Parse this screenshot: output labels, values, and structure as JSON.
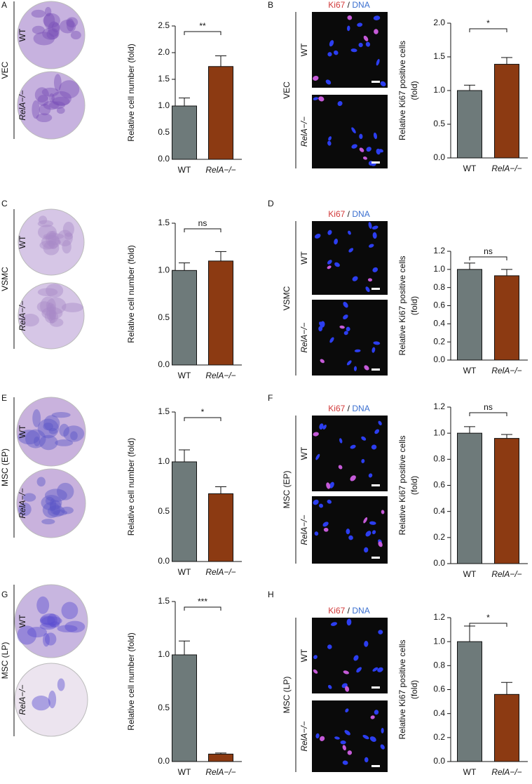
{
  "panels": [
    {
      "letter": "A",
      "cell_type": "VEC",
      "rows": [
        "WT",
        "RelA−/−"
      ]
    },
    {
      "letter": "B",
      "cell_type": "VEC",
      "rows": [
        "WT",
        "RelA−/−"
      ],
      "stain": {
        "marker": "Ki67",
        "separator": "/",
        "counter": "DNA"
      }
    },
    {
      "letter": "C",
      "cell_type": "VSMC",
      "rows": [
        "WT",
        "RelA−/−"
      ]
    },
    {
      "letter": "D",
      "cell_type": "VSMC",
      "rows": [
        "WT",
        "RelA−/−"
      ],
      "stain": {
        "marker": "Ki67",
        "separator": "/",
        "counter": "DNA"
      }
    },
    {
      "letter": "E",
      "cell_type": "MSC (EP)",
      "rows": [
        "WT",
        "RelA−/−"
      ]
    },
    {
      "letter": "F",
      "cell_type": "MSC (EP)",
      "rows": [
        "WT",
        "RelA−/−"
      ],
      "stain": {
        "marker": "Ki67",
        "separator": "/",
        "counter": "DNA"
      }
    },
    {
      "letter": "G",
      "cell_type": "MSC (LP)",
      "rows": [
        "WT",
        "RelA−/−"
      ]
    },
    {
      "letter": "H",
      "cell_type": "MSC (LP)",
      "rows": [
        "WT",
        "RelA−/−"
      ],
      "stain": {
        "marker": "Ki67",
        "separator": "/",
        "counter": "DNA"
      }
    }
  ],
  "chart_data": [
    {
      "type": "bar",
      "ylabel": [
        "Relative cell number (fold)"
      ],
      "categories": [
        "WT",
        "RelA−/−"
      ],
      "values": [
        1.0,
        1.74
      ],
      "errors": [
        0.15,
        0.2
      ],
      "colors": [
        "#6e7a7a",
        "#8c3a12"
      ],
      "significance": "**",
      "ylim": [
        0,
        2.5
      ],
      "yticks": [
        {
          "value": 0,
          "label": "0.0"
        },
        0.5,
        {
          "value": 1,
          "label": "1.0"
        },
        1.5,
        {
          "value": 2,
          "label": "2.0"
        },
        2.5
      ]
    },
    {
      "type": "bar",
      "ylabel": [
        "Relative Ki67 positive cells",
        "(fold)"
      ],
      "categories": [
        "WT",
        "RelA−/−"
      ],
      "values": [
        1.0,
        1.39
      ],
      "errors": [
        0.08,
        0.1
      ],
      "colors": [
        "#6e7a7a",
        "#8c3a12"
      ],
      "significance": "*",
      "ylim": [
        0,
        2
      ],
      "yticks": [
        {
          "value": 0,
          "label": "0.0"
        },
        0.5,
        {
          "value": 1,
          "label": "1.0"
        },
        1.5,
        {
          "value": 2,
          "label": "2.0"
        }
      ]
    },
    {
      "type": "bar",
      "ylabel": [
        "Relative cell number (fold)"
      ],
      "categories": [
        "WT",
        "RelA−/−"
      ],
      "values": [
        1.0,
        1.1
      ],
      "errors": [
        0.08,
        0.1
      ],
      "colors": [
        "#6e7a7a",
        "#8c3a12"
      ],
      "significance": "ns",
      "ylim": [
        0,
        1.5
      ],
      "yticks": [
        {
          "value": 0,
          "label": "0.0"
        },
        0.5,
        {
          "value": 1,
          "label": "1.0"
        },
        1.5
      ]
    },
    {
      "type": "bar",
      "ylabel": [
        "Relative Ki67 positive cells",
        "(fold)"
      ],
      "categories": [
        "WT",
        "RelA−/−"
      ],
      "values": [
        1.0,
        0.93
      ],
      "errors": [
        0.07,
        0.07
      ],
      "colors": [
        "#6e7a7a",
        "#8c3a12"
      ],
      "significance": "ns",
      "ylim": [
        0,
        1.2
      ],
      "yticks": [
        {
          "value": 0,
          "label": "0.0"
        },
        0.2,
        0.4,
        0.6,
        0.8,
        {
          "value": 1,
          "label": "1.0"
        },
        1.2
      ]
    },
    {
      "type": "bar",
      "ylabel": [
        "Relative cell number (fold)"
      ],
      "categories": [
        "WT",
        "RelA−/−"
      ],
      "values": [
        1.0,
        0.68
      ],
      "errors": [
        0.12,
        0.07
      ],
      "colors": [
        "#6e7a7a",
        "#8c3a12"
      ],
      "significance": "*",
      "ylim": [
        0,
        1.5
      ],
      "yticks": [
        {
          "value": 0,
          "label": "0.0"
        },
        0.5,
        {
          "value": 1,
          "label": "1.0"
        },
        1.5
      ]
    },
    {
      "type": "bar",
      "ylabel": [
        "Relative Ki67 positive cells",
        "(fold)"
      ],
      "categories": [
        "WT",
        "RelA−/−"
      ],
      "values": [
        1.0,
        0.96
      ],
      "errors": [
        0.05,
        0.03
      ],
      "colors": [
        "#6e7a7a",
        "#8c3a12"
      ],
      "significance": "ns",
      "ylim": [
        0,
        1.2
      ],
      "yticks": [
        {
          "value": 0,
          "label": "0.0"
        },
        0.2,
        0.4,
        0.6,
        0.8,
        {
          "value": 1,
          "label": "1.0"
        },
        1.2
      ]
    },
    {
      "type": "bar",
      "ylabel": [
        "Relative cell number (fold)"
      ],
      "categories": [
        "WT",
        "RelA−/−"
      ],
      "values": [
        1.0,
        0.07
      ],
      "errors": [
        0.13,
        0.01
      ],
      "colors": [
        "#6e7a7a",
        "#8c3a12"
      ],
      "significance": "***",
      "ylim": [
        0,
        1.5
      ],
      "yticks": [
        {
          "value": 0,
          "label": "0.0"
        },
        0.5,
        {
          "value": 1,
          "label": "1.0"
        },
        1.5
      ]
    },
    {
      "type": "bar",
      "ylabel": [
        "Relative Ki67 positive cells",
        "(fold)"
      ],
      "categories": [
        "WT",
        "RelA−/−"
      ],
      "values": [
        1.0,
        0.56
      ],
      "errors": [
        0.13,
        0.1
      ],
      "colors": [
        "#6e7a7a",
        "#8c3a12"
      ],
      "significance": "*",
      "ylim": [
        0,
        1.2
      ],
      "yticks": [
        {
          "value": 0,
          "label": "0.0"
        },
        0.2,
        0.4,
        0.6,
        0.8,
        {
          "value": 1,
          "label": "1.0"
        },
        1.2
      ]
    }
  ]
}
